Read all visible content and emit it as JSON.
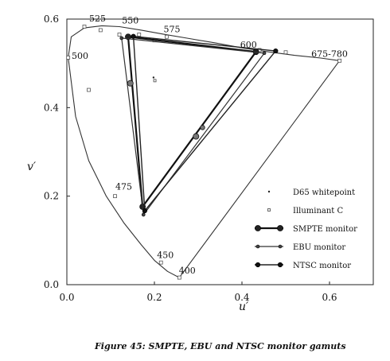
{
  "chart_data": {
    "type": "line",
    "title": "",
    "xlabel": "u′",
    "ylabel": "v′",
    "xlim": [
      0.0,
      0.7
    ],
    "ylim": [
      0.0,
      0.6
    ],
    "xticks": [
      "0.0",
      "0.2",
      "0.4",
      "0.6"
    ],
    "yticks": [
      "0.0",
      "0.2",
      "0.4",
      "0.6"
    ],
    "xtick_values": [
      0.0,
      0.2,
      0.4,
      0.6
    ],
    "ytick_values": [
      0.0,
      0.2,
      0.4,
      0.6
    ],
    "grid": false,
    "legend_position": "right",
    "spectral_locus": [
      [
        0.257,
        0.016
      ],
      [
        0.23,
        0.03
      ],
      [
        0.2,
        0.055
      ],
      [
        0.17,
        0.09
      ],
      [
        0.13,
        0.14
      ],
      [
        0.09,
        0.2
      ],
      [
        0.05,
        0.28
      ],
      [
        0.02,
        0.38
      ],
      [
        0.003,
        0.513
      ],
      [
        0.01,
        0.56
      ],
      [
        0.04,
        0.58
      ],
      [
        0.08,
        0.585
      ],
      [
        0.12,
        0.583
      ],
      [
        0.17,
        0.575
      ],
      [
        0.22,
        0.566
      ],
      [
        0.28,
        0.556
      ],
      [
        0.34,
        0.546
      ],
      [
        0.4,
        0.535
      ],
      [
        0.46,
        0.526
      ],
      [
        0.52,
        0.518
      ],
      [
        0.58,
        0.512
      ],
      [
        0.623,
        0.506
      ],
      [
        0.257,
        0.016
      ]
    ],
    "wavelength_labels": [
      {
        "text": "525",
        "u": 0.07,
        "v": 0.595
      },
      {
        "text": "550",
        "u": 0.145,
        "v": 0.59
      },
      {
        "text": "575",
        "u": 0.24,
        "v": 0.57
      },
      {
        "text": "600",
        "u": 0.415,
        "v": 0.535
      },
      {
        "text": "675-780",
        "u": 0.6,
        "v": 0.515
      },
      {
        "text": "500",
        "u": 0.03,
        "v": 0.51
      },
      {
        "text": "475",
        "u": 0.13,
        "v": 0.215
      },
      {
        "text": "450",
        "u": 0.225,
        "v": 0.06
      },
      {
        "text": "400",
        "u": 0.275,
        "v": 0.025
      }
    ],
    "locus_markers": [
      [
        0.04,
        0.583
      ],
      [
        0.077,
        0.575
      ],
      [
        0.12,
        0.565
      ],
      [
        0.165,
        0.565
      ],
      [
        0.228,
        0.56
      ],
      [
        0.2,
        0.552
      ],
      [
        0.44,
        0.53
      ],
      [
        0.5,
        0.525
      ],
      [
        0.623,
        0.506
      ],
      [
        0.003,
        0.513
      ],
      [
        0.05,
        0.44
      ],
      [
        0.11,
        0.2
      ],
      [
        0.215,
        0.05
      ],
      [
        0.257,
        0.016
      ]
    ],
    "series": [
      {
        "name": "D65 whitepoint",
        "points": [
          [
            0.198,
            0.468
          ]
        ]
      },
      {
        "name": "Illuminant C",
        "points": [
          [
            0.201,
            0.461
          ]
        ]
      },
      {
        "name": "SMPTE monitor",
        "points": [
          [
            0.432,
            0.526
          ],
          [
            0.14,
            0.56
          ],
          [
            0.173,
            0.176
          ],
          [
            0.432,
            0.526
          ]
        ]
      },
      {
        "name": "EBU monitor",
        "points": [
          [
            0.451,
            0.523
          ],
          [
            0.125,
            0.557
          ],
          [
            0.175,
            0.158
          ],
          [
            0.451,
            0.523
          ]
        ]
      },
      {
        "name": "NTSC monitor",
        "points": [
          [
            0.477,
            0.528
          ],
          [
            0.152,
            0.561
          ],
          [
            0.178,
            0.167
          ],
          [
            0.477,
            0.528
          ]
        ]
      }
    ],
    "extra_markers": [
      {
        "series": "SMPTE monitor",
        "points": [
          [
            0.145,
            0.455
          ],
          [
            0.295,
            0.335
          ]
        ]
      },
      {
        "series": "NTSC monitor",
        "points": [
          [
            0.31,
            0.355
          ]
        ]
      }
    ]
  },
  "caption": "Figure 45:  SMPTE, EBU and NTSC monitor gamuts"
}
